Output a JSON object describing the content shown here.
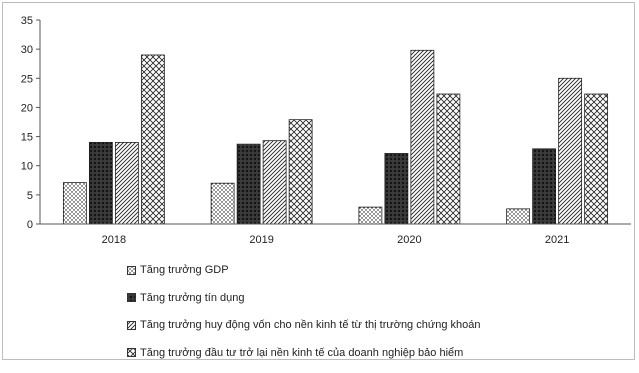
{
  "chart_data": {
    "type": "bar",
    "categories": [
      "2018",
      "2019",
      "2020",
      "2021"
    ],
    "series": [
      {
        "name": "Tăng trưởng GDP",
        "values": [
          7.1,
          7.0,
          2.9,
          2.6
        ],
        "pattern": "dots"
      },
      {
        "name": "Tăng trưởng tín dụng",
        "values": [
          14.0,
          13.7,
          12.1,
          12.9
        ],
        "pattern": "crosshatch-dark"
      },
      {
        "name": "Tăng trưởng huy động vốn cho nền kinh tế từ thị trường chứng khoán",
        "values": [
          14.0,
          14.3,
          29.8,
          25.0
        ],
        "pattern": "diagonal"
      },
      {
        "name": "Tăng trưởng đầu tư trở lại nền kinh tế của doanh nghiệp bảo hiểm",
        "values": [
          29.0,
          17.9,
          22.3,
          22.3
        ],
        "pattern": "diamond"
      }
    ],
    "ylim": [
      0,
      35
    ],
    "yticks": [
      0,
      5,
      10,
      15,
      20,
      25,
      30,
      35
    ],
    "grid": false,
    "legend_position": "bottom"
  }
}
